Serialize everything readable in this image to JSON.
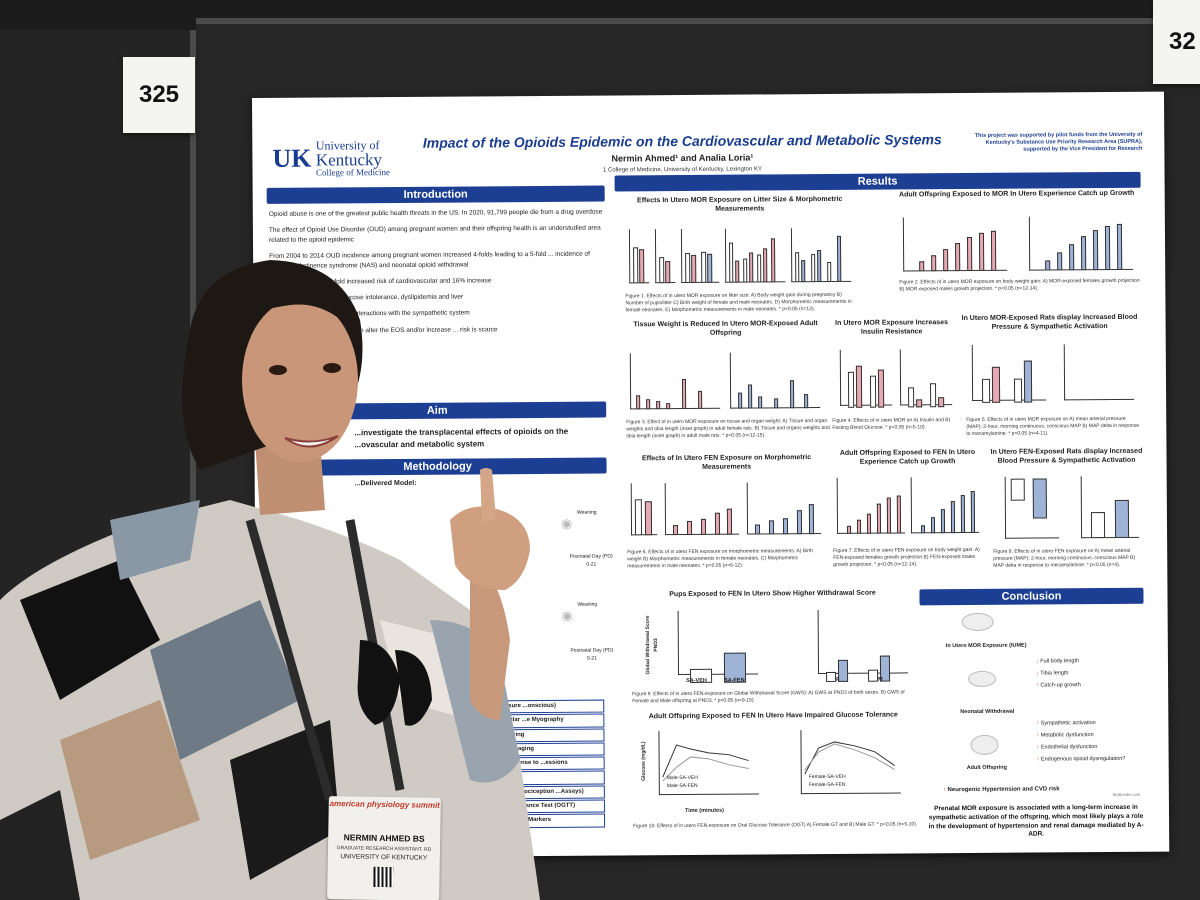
{
  "booth": {
    "left_number": "325",
    "right_number": "32"
  },
  "poster": {
    "university_line1": "University of",
    "university_line2": "Kentucky",
    "college": "College of Medicine",
    "logo_mark": "UK",
    "title": "Impact of the Opioids Epidemic on the Cardiovascular and Metabolic Systems",
    "authors": "Nermin Ahmed¹ and Analia Loria¹",
    "affiliation": "1 College of Medicine, University of Kentucky, Lexington KY",
    "funding": "This project was supported by pilot funds from the University of Kentucky's Substance Use Priority Research Area (SUPRA), supported by the Vice President for Research",
    "sections": {
      "introduction": "Introduction",
      "aim": "Aim",
      "methodology": "Methodology",
      "results": "Results",
      "conclusion": "Conclusion"
    },
    "intro_paragraphs": [
      "Opioid abuse is one of the greatest public health threats in the US. In 2020, 91,799 people die from a drug overdose",
      "The effect of Opioid Use Disorder (OUD) among pregnant women and their offspring health is an understudied area related to the opioid epidemic",
      "From 2004 to 2014 OUD incidence among pregnant women increased 4-folds leading to a 5-fold ... incidence of neonatal abstinence syndrome (NAS) and neonatal opioid withdrawal",
      "...ed with nearly a two-fold increased risk of cardiovascular and 16% increase",
      "...tabolic-like phenotype, glucose intolerance, dyslipidemia and liver",
      "...diovascular modulation via interactions with the sympathetic system",
      "...xposure to opioids in utero can alter the EOS and/or increase ... risk is scarce"
    ],
    "aim_text": "...investigate the transplacental effects of opioids on the ...ovascular and metabolic system",
    "method_model": "...Delivered Model:",
    "method_labels": [
      "Weaning",
      "Postnatal Day (PD) 0-21",
      "Weaning",
      "Postnatal Day (PD) 0-21"
    ],
    "method_list": [
      "...Pressure ...onscious)",
      "...Vascular ...e Myography",
      "...al Scoring",
      "...ance Imaging",
      "...in Response to ...essions",
      "...lic Cages",
      "...Testing (nociception ...Assays)",
      "...cose Tolerance Test (OGTT)",
      "Biochemical Markers"
    ],
    "figures": [
      {
        "title": "Effects In Utero MOR Exposure on Litter Size & Morphometric Measurements",
        "caption": "Figure 1. Effects of in utero MOR exposure on litter size: A) Body weight gain during pregnancy B) Number of pups/litter C) Birth weight of female and male neonates. D) Morphometric measurements in female neonates. E) Morphometric measurements in male neonates. * p<0.05 (n=12)."
      },
      {
        "title": "Adult Offspring Exposed to MOR In Utero Experience Catch up Growth",
        "caption": "Figure 2. Effects of in utero MOR exposure on body weight gain: A) MOR-exposed females growth projection B) MOR-exposed males growth projection. * p<0.05 (n=12-14)."
      },
      {
        "title": "Tissue Weight is Reduced In Utero MOR-Exposed Adult Offspring",
        "caption": "Figure 3. Effect of in utero MOR exposure on tissue and organ weight: A) Tissue and organ weights and tibia length (inset graph) in adult female rats. B) Tissue and organs weights and tibia length (inset graph) in adult male rats. * p<0.05 (n=12-15)."
      },
      {
        "title": "In Utero MOR Exposure Increases Insulin Resistance",
        "caption": "Figure 4. Effects of in utero MOR on A) Insulin and B) Fasting Blood Glucose. * p<0.05 (n=5-10)."
      },
      {
        "title": "In Utero MOR-Exposed Rats display Increased Blood Pressure & Sympathetic Activation",
        "caption": "Figure 5. Effects of in utero MOR exposure on A) mean arterial pressure (MAP): 2-hour, morning continuous, conscious MAP B) MAP delta in response to mecamylamine. * p<0.05 (n=4-11)."
      },
      {
        "title": "Effects of In Utero FEN Exposure on Morphometric Measurements",
        "caption": "Figure 6. Effects of in utero FEN exposure on morphometric measurements: A) Birth weight B) Morphometric measurements in female neonates. C) Morphometric measurements in male neonates. * p<0.05 (n=6-12)."
      },
      {
        "title": "Adult Offspring Exposed to FEN In Utero Experience Catch up Growth",
        "caption": "Figure 7. Effects of in utero FEN exposure on body weight gain: A) FEN-exposed females growth projection B) FEN-exposed males growth projection. * p<0.05 (n=12-14)."
      },
      {
        "title": "In Utero FEN-Exposed Rats display Increased Blood Pressure & Sympathetic Activation",
        "caption": "Figure 8. Effects of in utero FEN exposure on A) mean arterial pressure (MAP): 2-hour, morning continuous, conscious MAP B) MAP delta in response to mecamylamine. * p<0.05 (n=4)."
      },
      {
        "title": "Pups Exposed to FEN In Utero Show Higher Withdrawal Score",
        "caption": "Figure 9. Effects of in utero FEN-exposure on Global Withdrawal Score (GWS): A) GWS at PND3 of both sexes. B) GWS of Female and Male offspring at PND3. * p<0.05 (n=9-15)."
      },
      {
        "title": "Adult Offspring Exposed to FEN In Utero Have Impaired Glucose Tolerance",
        "caption": "Figure 10. Effects of in utero FEN-exposure on Oral Glucose Tolerance (OGT) A) Female GT and B) Male GT. * p<0.05 (n=5-10)."
      }
    ],
    "legend_labels": {
      "veh_f": "VEH_F",
      "mor_f": "MOR_F",
      "veh_m": "VEH_M",
      "mor_m": "MOR_M",
      "sa_veh": "SA-VEH",
      "sa_fen": "SA-FEN",
      "male_sa_veh": "MALE SA-VEH",
      "male_sa_fen": "MALE SA-FEN",
      "male_veh": "Male-SA-VEH",
      "male_fen": "Male-SA-FEN",
      "female_veh": "Female-SA-VEH",
      "female_fen": "Female-SA-FEN"
    },
    "axis_labels": {
      "gws": "Global Withdrawal Score PND3",
      "glucose": "Glucose (mg/dL)",
      "time": "Time (minutes)",
      "map": "Baseline MAP (mmHg)",
      "body_weight": "Body Weight (g)",
      "x_sa": [
        "SA-VEH",
        "SA-FEN"
      ],
      "x_fm": [
        "F",
        "M"
      ],
      "x_time": [
        "0",
        "15",
        "30",
        "60",
        "90",
        "120"
      ]
    },
    "conclusion": {
      "stage1": "In Utero MOR Exposure (IUME)",
      "stage1_effects": [
        "Full body length",
        "Tibia length",
        "Catch-up growth"
      ],
      "stage2": "Neonatal Withdrawal",
      "stage3": "Adult Offspring",
      "stage3_effects": [
        "Sympathetic activation",
        "Metabolic dysfunction",
        "Endothelial dysfunction",
        "Endogenous opioid dysregulation?"
      ],
      "outcome": "Neurogenic Hypertension and CVD risk",
      "summary": "Prenatal MOR exposure is associated with a long-term increase in sympathetic activation of the offspring, which most likely plays a role in the development of hypertension and renal damage mediated by A-ADR.",
      "credit": "BioRender.com"
    }
  },
  "badge": {
    "event": "american physiology summit",
    "name": "NERMIN AHMED BS",
    "role": "GRADUATE RESEARCH ASSISTANT, RD",
    "org": "UNIVERSITY OF KENTUCKY"
  },
  "colors": {
    "poster_blue": "#1c3f94",
    "veh_bar": "#f1f1f1",
    "mor_bar": "#e6a9b3",
    "fen_bar": "#9fb3d6"
  }
}
